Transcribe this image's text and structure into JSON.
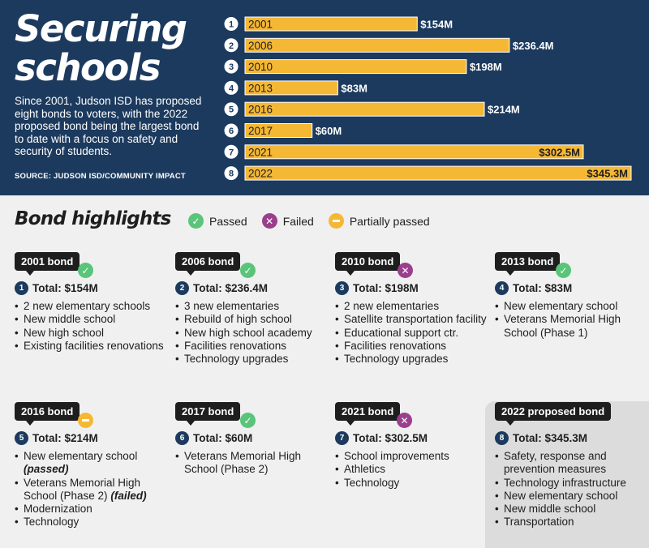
{
  "header": {
    "title_line1": "Securing",
    "title_line2": "schools",
    "description": "Since 2001, Judson ISD has proposed eight bonds to voters, with the 2022 proposed bond being the largest bond to date with a focus on safety and security of students.",
    "source": "SOURCE: JUDSON ISD/COMMUNITY IMPACT"
  },
  "chart_data": {
    "type": "bar",
    "orientation": "horizontal",
    "categories": [
      "2001",
      "2006",
      "2010",
      "2013",
      "2016",
      "2017",
      "2021",
      "2022"
    ],
    "ranks": [
      "1",
      "2",
      "3",
      "4",
      "5",
      "6",
      "7",
      "8"
    ],
    "values": [
      154,
      236.4,
      198,
      83,
      214,
      60,
      302.5,
      345.3
    ],
    "value_labels": [
      "$154M",
      "$236.4M",
      "$198M",
      "$83M",
      "$214M",
      "$60M",
      "$302.5M",
      "$345.3M"
    ],
    "unit": "$M",
    "xlim": [
      0,
      345.3
    ],
    "colors": {
      "bar": "#f5b835",
      "label": "#ffffff",
      "background": "#1c3a5e"
    }
  },
  "highlights": {
    "title": "Bond highlights",
    "legend": {
      "passed": "Passed",
      "failed": "Failed",
      "partial": "Partially passed"
    },
    "bonds": [
      {
        "tag": "2001 bond",
        "status": "passed",
        "num": "1",
        "total": "Total: $154M",
        "items": [
          [
            "2 new elementary schools"
          ],
          [
            "New middle school"
          ],
          [
            "New high school"
          ],
          [
            "Existing facilities renovations"
          ]
        ]
      },
      {
        "tag": "2006 bond",
        "status": "passed",
        "num": "2",
        "total": "Total: $236.4M",
        "items": [
          [
            "3 new elementaries"
          ],
          [
            "Rebuild of high school"
          ],
          [
            "New high school academy"
          ],
          [
            "Facilities renovations"
          ],
          [
            "Technology upgrades"
          ]
        ]
      },
      {
        "tag": "2010 bond",
        "status": "failed",
        "num": "3",
        "total": "Total: $198M",
        "items": [
          [
            "2 new elementaries"
          ],
          [
            "Satellite transportation facility"
          ],
          [
            "Educational support ctr."
          ],
          [
            "Facilities renovations"
          ],
          [
            "Technology upgrades"
          ]
        ]
      },
      {
        "tag": "2013 bond",
        "status": "passed",
        "num": "4",
        "total": "Total: $83M",
        "items": [
          [
            "New elementary school"
          ],
          [
            "Veterans Memorial High School (Phase 1)"
          ]
        ]
      },
      {
        "tag": "2016 bond",
        "status": "partial",
        "num": "5",
        "total": "Total: $214M",
        "items": [
          [
            "New elementary school",
            "(passed)"
          ],
          [
            "Veterans Memorial High School (Phase 2)",
            "(failed)"
          ],
          [
            "Modernization"
          ],
          [
            "Technology"
          ]
        ]
      },
      {
        "tag": "2017 bond",
        "status": "passed",
        "num": "6",
        "total": "Total: $60M",
        "items": [
          [
            "Veterans Memorial High School (Phase 2)"
          ]
        ]
      },
      {
        "tag": "2021 bond",
        "status": "failed",
        "num": "7",
        "total": "Total: $302.5M",
        "items": [
          [
            "School improvements"
          ],
          [
            "Athletics"
          ],
          [
            "Technology"
          ]
        ]
      },
      {
        "tag": "2022 proposed bond",
        "status": "none",
        "num": "8",
        "total": "Total: $345.3M",
        "items": [
          [
            "Safety, response and prevention measures"
          ],
          [
            "Technology infrastructure"
          ],
          [
            "New elementary school"
          ],
          [
            "New middle school"
          ],
          [
            "Transportation"
          ]
        ]
      }
    ]
  }
}
